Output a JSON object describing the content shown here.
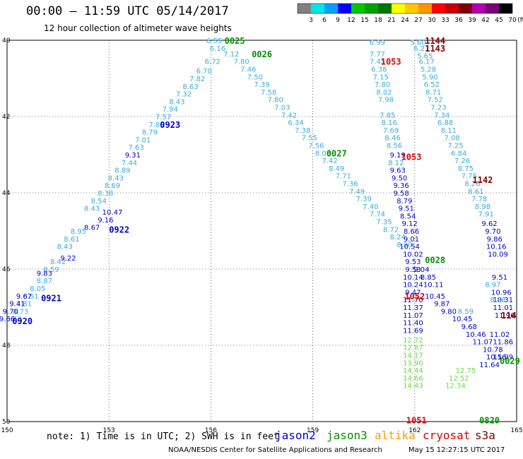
{
  "header": {
    "title": "00:00 – 11:59 UTC 05/14/2017",
    "subtitle": "12 hour collection of altimeter wave heights"
  },
  "color_scale": {
    "unit": "(ft)",
    "labels": [
      "3",
      "6",
      "9",
      "12",
      "15",
      "18",
      "21",
      "24",
      "27",
      "30",
      "33",
      "36",
      "39",
      "42",
      "45",
      "70"
    ],
    "colors": [
      "#808080",
      "#00e6e6",
      "#00a0ff",
      "#0000ff",
      "#00c800",
      "#00a000",
      "#007800",
      "#ffff00",
      "#ffc800",
      "#ff9600",
      "#ff0000",
      "#c80000",
      "#800000",
      "#b400b4",
      "#780078",
      "#000000"
    ]
  },
  "map": {
    "lon_ticks": [
      "150",
      "153",
      "156",
      "159",
      "162",
      "165"
    ],
    "lat_ticks": [
      "40",
      "42",
      "44",
      "46",
      "48",
      "50"
    ]
  },
  "passes": [
    {
      "time": "0025",
      "color": "#009000",
      "lon": 156.4,
      "lat": 40.0
    },
    {
      "time": "0026",
      "color": "#009000",
      "lon": 157.2,
      "lat": 40.35
    },
    {
      "time": "0923",
      "color": "#0000cc",
      "lon": 154.5,
      "lat": 42.2
    },
    {
      "time": "0922",
      "color": "#0000cc",
      "lon": 153.0,
      "lat": 44.95
    },
    {
      "time": "0921",
      "color": "#0000cc",
      "lon": 151.0,
      "lat": 46.75
    },
    {
      "time": "0920",
      "color": "#0000cc",
      "lon": 150.15,
      "lat": 47.35
    },
    {
      "time": "0027",
      "color": "#009000",
      "lon": 159.4,
      "lat": 42.95
    },
    {
      "time": "0028",
      "color": "#009000",
      "lon": 162.3,
      "lat": 45.75
    },
    {
      "time": "1053",
      "color": "#e00000",
      "lon": 161.0,
      "lat": 40.55
    },
    {
      "time": "1053",
      "color": "#e00000",
      "lon": 161.6,
      "lat": 43.05
    },
    {
      "time": "1052",
      "color": "#e00000",
      "lon": 161.7,
      "lat": 46.7
    },
    {
      "time": "1051",
      "color": "#e00000",
      "lon": 161.75,
      "lat": 49.95
    },
    {
      "time": "1144",
      "color": "#800000",
      "lon": 162.3,
      "lat": 40.0
    },
    {
      "time": "1143",
      "color": "#800000",
      "lon": 162.3,
      "lat": 40.2
    },
    {
      "time": "1142",
      "color": "#800000",
      "lon": 163.7,
      "lat": 43.65
    },
    {
      "time": "114",
      "color": "#800000",
      "lon": 164.7,
      "lat": 47.2
    },
    {
      "time": "0820",
      "color": "#009000",
      "lon": 163.9,
      "lat": 49.95
    },
    {
      "time": "0029",
      "color": "#009000",
      "lon": 164.5,
      "lat": 48.4
    }
  ],
  "tracks": [
    {
      "color": "#3caadc",
      "rows": [
        {
          "lon": 156.1,
          "lat": 40.0,
          "v": "6.55"
        },
        {
          "lon": 156.2,
          "lat": 40.2,
          "v": "6.16"
        },
        {
          "lon": 156.05,
          "lat": 40.55,
          "v": "6.72"
        },
        {
          "lon": 155.8,
          "lat": 40.8,
          "v": "6.70"
        },
        {
          "lon": 155.6,
          "lat": 41.0,
          "v": "7.82"
        },
        {
          "lon": 155.4,
          "lat": 41.2,
          "v": "8.63"
        },
        {
          "lon": 155.2,
          "lat": 41.4,
          "v": "7.32"
        },
        {
          "lon": 155.0,
          "lat": 41.6,
          "v": "8.43"
        },
        {
          "lon": 154.8,
          "lat": 41.8,
          "v": "7.94"
        },
        {
          "lon": 154.6,
          "lat": 42.0,
          "v": "7.57"
        },
        {
          "lon": 154.4,
          "lat": 42.2,
          "v": "7.85"
        },
        {
          "lon": 154.2,
          "lat": 42.4,
          "v": "8.79"
        },
        {
          "lon": 154.0,
          "lat": 42.6,
          "v": "7.01"
        },
        {
          "lon": 153.8,
          "lat": 42.8,
          "v": "7.63"
        },
        {
          "lon": 153.6,
          "lat": 43.2,
          "v": "7.44"
        },
        {
          "lon": 153.4,
          "lat": 43.4,
          "v": "8.89"
        },
        {
          "lon": 153.2,
          "lat": 43.6,
          "v": "8.43"
        },
        {
          "lon": 153.1,
          "lat": 43.8,
          "v": "8.69"
        },
        {
          "lon": 152.9,
          "lat": 44.0,
          "v": "8.38"
        },
        {
          "lon": 152.7,
          "lat": 44.2,
          "v": "8.54"
        },
        {
          "lon": 152.5,
          "lat": 44.4,
          "v": "8.43"
        },
        {
          "lon": 152.1,
          "lat": 45.0,
          "v": "8.95"
        },
        {
          "lon": 151.9,
          "lat": 45.2,
          "v": "8.61"
        },
        {
          "lon": 151.7,
          "lat": 45.4,
          "v": "8.43"
        },
        {
          "lon": 151.5,
          "lat": 45.8,
          "v": "8.42"
        },
        {
          "lon": 151.3,
          "lat": 46.0,
          "v": "8.59"
        },
        {
          "lon": 151.1,
          "lat": 46.3,
          "v": "8.87"
        },
        {
          "lon": 150.9,
          "lat": 46.5,
          "v": "8.05"
        },
        {
          "lon": 150.7,
          "lat": 46.7,
          "v": "8.51"
        },
        {
          "lon": 150.5,
          "lat": 46.9,
          "v": "7.81"
        },
        {
          "lon": 150.4,
          "lat": 47.1,
          "v": "8.73"
        },
        {
          "lon": 150.2,
          "lat": 47.3,
          "v": "8.63"
        }
      ]
    },
    {
      "color": "#0000cc",
      "rows": [
        {
          "lon": 153.1,
          "lat": 44.5,
          "v": "10.47"
        },
        {
          "lon": 152.9,
          "lat": 44.7,
          "v": "9.16"
        },
        {
          "lon": 152.5,
          "lat": 44.9,
          "v": "8.67"
        },
        {
          "lon": 151.8,
          "lat": 45.7,
          "v": "9.22"
        },
        {
          "lon": 151.1,
          "lat": 46.1,
          "v": "9.83"
        },
        {
          "lon": 150.5,
          "lat": 46.7,
          "v": "9.67"
        },
        {
          "lon": 150.3,
          "lat": 46.9,
          "v": "9.41"
        },
        {
          "lon": 150.1,
          "lat": 47.1,
          "v": "9.70"
        },
        {
          "lon": 150.0,
          "lat": 47.3,
          "v": "9.66"
        },
        {
          "lon": 153.7,
          "lat": 43.0,
          "v": "9.31"
        }
      ]
    },
    {
      "color": "#3caadc",
      "rows": [
        {
          "lon": 156.6,
          "lat": 40.35,
          "v": "7.12"
        },
        {
          "lon": 156.9,
          "lat": 40.55,
          "v": "7.80"
        },
        {
          "lon": 157.1,
          "lat": 40.75,
          "v": "7.46"
        },
        {
          "lon": 157.3,
          "lat": 40.95,
          "v": "7.50"
        },
        {
          "lon": 157.5,
          "lat": 41.15,
          "v": "7.39"
        },
        {
          "lon": 157.7,
          "lat": 41.35,
          "v": "7.58"
        },
        {
          "lon": 157.9,
          "lat": 41.55,
          "v": "7.80"
        },
        {
          "lon": 158.1,
          "lat": 41.75,
          "v": "7.03"
        },
        {
          "lon": 158.3,
          "lat": 41.95,
          "v": "7.42"
        },
        {
          "lon": 158.5,
          "lat": 42.15,
          "v": "6.34"
        },
        {
          "lon": 158.7,
          "lat": 42.35,
          "v": "7.38"
        },
        {
          "lon": 158.9,
          "lat": 42.55,
          "v": "7.55"
        },
        {
          "lon": 159.1,
          "lat": 42.75,
          "v": "7.56"
        },
        {
          "lon": 159.3,
          "lat": 42.95,
          "v": "8.06"
        },
        {
          "lon": 159.5,
          "lat": 43.15,
          "v": "7.42"
        },
        {
          "lon": 159.7,
          "lat": 43.35,
          "v": "8.49"
        },
        {
          "lon": 159.9,
          "lat": 43.55,
          "v": "7.71"
        },
        {
          "lon": 160.1,
          "lat": 43.75,
          "v": "7.36"
        },
        {
          "lon": 160.3,
          "lat": 43.95,
          "v": "7.49"
        },
        {
          "lon": 160.5,
          "lat": 44.15,
          "v": "7.39"
        },
        {
          "lon": 160.7,
          "lat": 44.35,
          "v": "7.40"
        },
        {
          "lon": 160.9,
          "lat": 44.55,
          "v": "7.74"
        },
        {
          "lon": 161.1,
          "lat": 44.75,
          "v": "7.35"
        },
        {
          "lon": 161.3,
          "lat": 44.95,
          "v": "8.72"
        },
        {
          "lon": 161.5,
          "lat": 45.15,
          "v": "8.24"
        },
        {
          "lon": 161.7,
          "lat": 45.35,
          "v": "8.90"
        }
      ]
    },
    {
      "color": "#3caadc",
      "rows": [
        {
          "lon": 160.9,
          "lat": 40.05,
          "v": "6.99"
        },
        {
          "lon": 160.9,
          "lat": 40.35,
          "v": "7.77"
        },
        {
          "lon": 160.9,
          "lat": 40.55,
          "v": "7.45"
        },
        {
          "lon": 160.95,
          "lat": 40.75,
          "v": "6.38"
        },
        {
          "lon": 161.0,
          "lat": 40.95,
          "v": "7.15"
        },
        {
          "lon": 161.05,
          "lat": 41.15,
          "v": "7.80"
        },
        {
          "lon": 161.1,
          "lat": 41.35,
          "v": "8.02"
        },
        {
          "lon": 161.15,
          "lat": 41.55,
          "v": "7.98"
        },
        {
          "lon": 161.2,
          "lat": 41.95,
          "v": "7.85"
        },
        {
          "lon": 161.25,
          "lat": 42.15,
          "v": "8.16"
        },
        {
          "lon": 161.3,
          "lat": 42.35,
          "v": "7.69"
        },
        {
          "lon": 161.35,
          "lat": 42.55,
          "v": "8.46"
        },
        {
          "lon": 161.4,
          "lat": 42.75,
          "v": "8.56"
        },
        {
          "lon": 161.45,
          "lat": 43.2,
          "v": "8.12"
        }
      ]
    },
    {
      "color": "#0000cc",
      "rows": [
        {
          "lon": 161.5,
          "lat": 43.0,
          "v": "9.19"
        },
        {
          "lon": 161.5,
          "lat": 43.4,
          "v": "9.63"
        },
        {
          "lon": 161.55,
          "lat": 43.6,
          "v": "9.50"
        },
        {
          "lon": 161.6,
          "lat": 43.8,
          "v": "9.36"
        },
        {
          "lon": 161.6,
          "lat": 44.0,
          "v": "9.58"
        },
        {
          "lon": 161.7,
          "lat": 44.2,
          "v": "8.79"
        },
        {
          "lon": 161.75,
          "lat": 44.4,
          "v": "9.51"
        },
        {
          "lon": 161.8,
          "lat": 44.6,
          "v": "8.54"
        },
        {
          "lon": 161.85,
          "lat": 44.8,
          "v": "9.12"
        },
        {
          "lon": 161.9,
          "lat": 45.0,
          "v": "8.66"
        },
        {
          "lon": 161.9,
          "lat": 45.2,
          "v": "9.01"
        },
        {
          "lon": 161.85,
          "lat": 45.4,
          "v": "10.54"
        },
        {
          "lon": 161.95,
          "lat": 45.6,
          "v": "10.02"
        },
        {
          "lon": 161.95,
          "lat": 45.8,
          "v": "9.53"
        },
        {
          "lon": 161.95,
          "lat": 46.0,
          "v": "9.53"
        },
        {
          "lon": 161.95,
          "lat": 46.2,
          "v": "10.14"
        },
        {
          "lon": 161.95,
          "lat": 46.4,
          "v": "10.24"
        },
        {
          "lon": 161.95,
          "lat": 46.6,
          "v": "9.47"
        },
        {
          "lon": 161.95,
          "lat": 46.8,
          "v": "11.70"
        },
        {
          "lon": 161.95,
          "lat": 47.0,
          "v": "11.37"
        },
        {
          "lon": 161.95,
          "lat": 47.2,
          "v": "11.07"
        },
        {
          "lon": 161.95,
          "lat": 47.4,
          "v": "11.40"
        },
        {
          "lon": 161.95,
          "lat": 47.6,
          "v": "11.69"
        }
      ]
    },
    {
      "color": "#66dd44",
      "rows": [
        {
          "lon": 161.95,
          "lat": 47.85,
          "v": "12.72"
        },
        {
          "lon": 161.95,
          "lat": 48.05,
          "v": "12.87"
        },
        {
          "lon": 161.95,
          "lat": 48.25,
          "v": "14.17"
        },
        {
          "lon": 161.95,
          "lat": 48.45,
          "v": "13.90"
        },
        {
          "lon": 161.95,
          "lat": 48.65,
          "v": "14.44"
        },
        {
          "lon": 161.95,
          "lat": 48.85,
          "v": "14.66"
        },
        {
          "lon": 161.95,
          "lat": 49.05,
          "v": "14.43"
        },
        {
          "lon": 163.2,
          "lat": 49.05,
          "v": "12.34"
        },
        {
          "lon": 163.3,
          "lat": 48.85,
          "v": "12.52"
        },
        {
          "lon": 163.5,
          "lat": 48.65,
          "v": "12.75"
        }
      ]
    },
    {
      "color": "#3caadc",
      "rows": [
        {
          "lon": 162.1,
          "lat": 40.05,
          "v": "5.60"
        },
        {
          "lon": 162.2,
          "lat": 40.2,
          "v": "6.27"
        },
        {
          "lon": 162.3,
          "lat": 40.4,
          "v": "5.65"
        },
        {
          "lon": 162.35,
          "lat": 40.55,
          "v": "6.17"
        },
        {
          "lon": 162.4,
          "lat": 40.75,
          "v": "5.28"
        },
        {
          "lon": 162.45,
          "lat": 40.95,
          "v": "5.90"
        },
        {
          "lon": 162.5,
          "lat": 41.15,
          "v": "6.52"
        },
        {
          "lon": 162.55,
          "lat": 41.35,
          "v": "8.71"
        },
        {
          "lon": 162.6,
          "lat": 41.55,
          "v": "7.52"
        },
        {
          "lon": 162.7,
          "lat": 41.75,
          "v": "7.23"
        },
        {
          "lon": 162.8,
          "lat": 41.95,
          "v": "7.34"
        },
        {
          "lon": 162.9,
          "lat": 42.15,
          "v": "6.88"
        },
        {
          "lon": 163.0,
          "lat": 42.35,
          "v": "8.11"
        },
        {
          "lon": 163.1,
          "lat": 42.55,
          "v": "7.08"
        },
        {
          "lon": 163.2,
          "lat": 42.75,
          "v": "7.25"
        },
        {
          "lon": 163.3,
          "lat": 42.95,
          "v": "6.84"
        },
        {
          "lon": 163.4,
          "lat": 43.15,
          "v": "7.26"
        },
        {
          "lon": 163.5,
          "lat": 43.35,
          "v": "8.75"
        },
        {
          "lon": 163.6,
          "lat": 43.55,
          "v": "7.75"
        },
        {
          "lon": 163.7,
          "lat": 43.75,
          "v": "8.26"
        },
        {
          "lon": 163.8,
          "lat": 43.95,
          "v": "8.61"
        },
        {
          "lon": 163.9,
          "lat": 44.15,
          "v": "7.78"
        },
        {
          "lon": 164.0,
          "lat": 44.35,
          "v": "8.98"
        },
        {
          "lon": 164.1,
          "lat": 44.55,
          "v": "7.91"
        }
      ]
    },
    {
      "color": "#0000cc",
      "rows": [
        {
          "lon": 164.2,
          "lat": 44.8,
          "v": "9.62"
        },
        {
          "lon": 164.3,
          "lat": 45.0,
          "v": "9.70"
        },
        {
          "lon": 164.35,
          "lat": 45.2,
          "v": "9.86"
        },
        {
          "lon": 164.4,
          "lat": 45.4,
          "v": "10.16"
        },
        {
          "lon": 164.45,
          "lat": 45.6,
          "v": "10.09"
        },
        {
          "lon": 164.5,
          "lat": 46.2,
          "v": "9.51"
        },
        {
          "lon": 164.55,
          "lat": 46.6,
          "v": "10.96"
        },
        {
          "lon": 164.6,
          "lat": 46.8,
          "v": "10.31"
        },
        {
          "lon": 164.6,
          "lat": 47.0,
          "v": "11.01"
        },
        {
          "lon": 164.65,
          "lat": 47.2,
          "v": "11.96"
        },
        {
          "lon": 164.5,
          "lat": 47.7,
          "v": "11.02"
        },
        {
          "lon": 164.6,
          "lat": 47.9,
          "v": "11.86"
        },
        {
          "lon": 164.6,
          "lat": 48.3,
          "v": "11.99"
        },
        {
          "lon": 164.2,
          "lat": 48.5,
          "v": "11.64"
        },
        {
          "lon": 162.6,
          "lat": 46.7,
          "v": "10.45"
        },
        {
          "lon": 162.8,
          "lat": 46.9,
          "v": "9.87"
        },
        {
          "lon": 163.0,
          "lat": 47.1,
          "v": "9.80"
        },
        {
          "lon": 163.4,
          "lat": 47.3,
          "v": "10.45"
        },
        {
          "lon": 163.6,
          "lat": 47.5,
          "v": "9.68"
        },
        {
          "lon": 163.8,
          "lat": 47.7,
          "v": "10.46"
        },
        {
          "lon": 164.0,
          "lat": 47.9,
          "v": "11.07"
        },
        {
          "lon": 164.3,
          "lat": 48.1,
          "v": "10.78"
        },
        {
          "lon": 164.4,
          "lat": 48.3,
          "v": "10.56"
        },
        {
          "lon": 162.55,
          "lat": 46.4,
          "v": "10.11"
        },
        {
          "lon": 162.4,
          "lat": 46.2,
          "v": "8.85"
        },
        {
          "lon": 162.2,
          "lat": 46.0,
          "v": "9.04"
        }
      ]
    },
    {
      "color": "#3caadc",
      "rows": [
        {
          "lon": 164.3,
          "lat": 46.4,
          "v": "8.97"
        },
        {
          "lon": 164.45,
          "lat": 46.8,
          "v": "8.88"
        },
        {
          "lon": 163.5,
          "lat": 47.1,
          "v": "8.59"
        }
      ]
    }
  ],
  "legend": {
    "note": "note: 1) Time is in UTC; 2) SWH is in feet",
    "satellites": [
      {
        "name": "jason2",
        "color": "#0000dd"
      },
      {
        "name": "jason3",
        "color": "#009000"
      },
      {
        "name": "altika",
        "color": "#ff9a00"
      },
      {
        "name": "cryosat",
        "color": "#e00000"
      },
      {
        "name": "s3a",
        "color": "#800000"
      }
    ]
  },
  "footer": {
    "credit": "NOAA/NESDIS Center for Satellite Applications and Research",
    "timestamp": "May 15 12:27:15 UTC 2017"
  }
}
